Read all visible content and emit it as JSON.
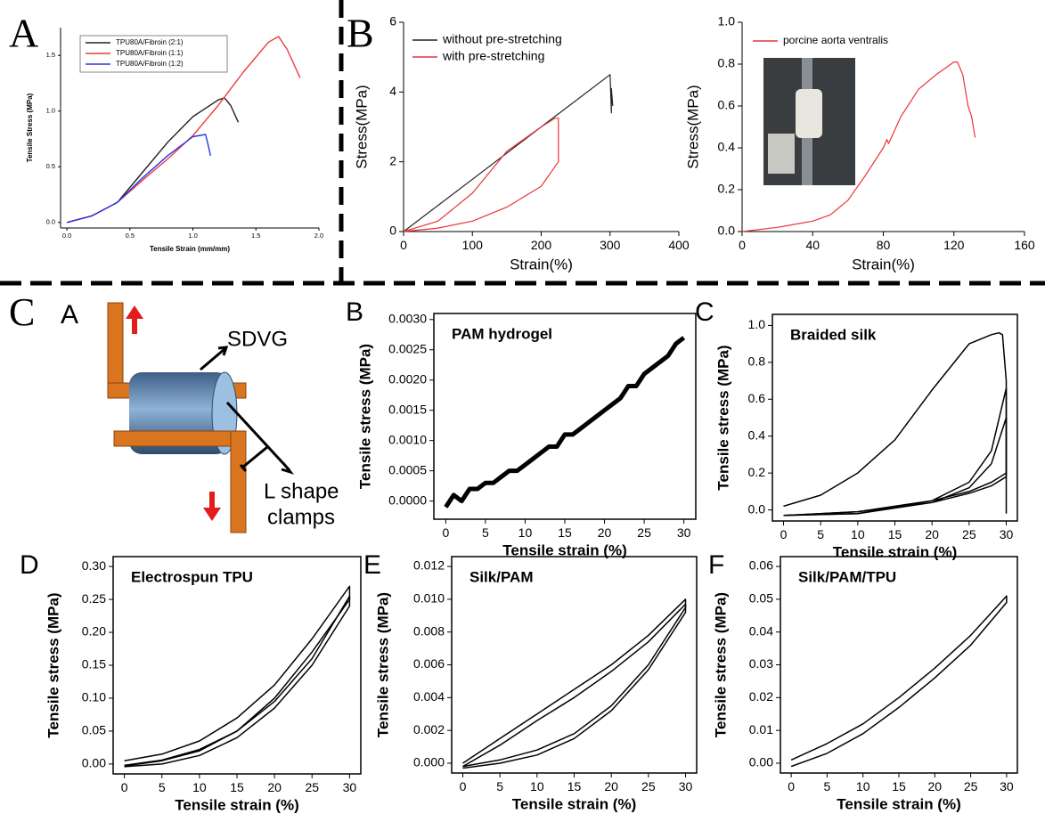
{
  "figure": {
    "panel_label": "C",
    "schematic": {
      "label": "A",
      "component": "SDVG",
      "clamps": [
        "L shape",
        "clamps"
      ]
    }
  },
  "chart_data": [
    {
      "type": "line",
      "panel_label": "A",
      "xlabel": "Tensile Strain (mm/mm)",
      "ylabel": "Tensile Stress (MPa)",
      "legend": "upper left",
      "xlim": [
        -0.05,
        2.0
      ],
      "ylim": [
        -0.05,
        1.75
      ],
      "xticks": [
        {
          "value": 0,
          "label": "0.0"
        },
        0.5,
        {
          "value": 1,
          "label": "1.0"
        },
        1.5,
        {
          "value": 2,
          "label": "2.0"
        }
      ],
      "yticks": [
        {
          "value": 0,
          "label": "0.0"
        },
        0.5,
        {
          "value": 1,
          "label": "1.0"
        },
        1.5
      ],
      "series": [
        {
          "name": "TPU80A/Fibroin (2:1)",
          "color": "#222222",
          "x": [
            0,
            0.2,
            0.4,
            0.6,
            0.8,
            1.0,
            1.2,
            1.25,
            1.3,
            1.36
          ],
          "values": [
            0,
            0.06,
            0.18,
            0.45,
            0.72,
            0.95,
            1.1,
            1.12,
            1.05,
            0.9
          ]
        },
        {
          "name": "TPU80A/Fibroin (1:1)",
          "color": "#ee3b3b",
          "x": [
            0,
            0.2,
            0.4,
            0.6,
            0.8,
            1.0,
            1.2,
            1.4,
            1.6,
            1.68,
            1.75,
            1.85
          ],
          "values": [
            0,
            0.06,
            0.18,
            0.38,
            0.57,
            0.78,
            1.05,
            1.35,
            1.62,
            1.67,
            1.55,
            1.3
          ]
        },
        {
          "name": "TPU80A/Fibroin (1:2)",
          "color": "#2b35e8",
          "x": [
            0,
            0.2,
            0.4,
            0.6,
            0.8,
            1.0,
            1.1,
            1.12,
            1.14
          ],
          "values": [
            0,
            0.06,
            0.18,
            0.4,
            0.6,
            0.77,
            0.79,
            0.7,
            0.6
          ]
        }
      ]
    },
    {
      "type": "line",
      "panel_label": "B",
      "xlabel": "Strain(%)",
      "ylabel": "Stress(MPa)",
      "legend": "upper left",
      "xlim": [
        0,
        400
      ],
      "ylim": [
        0,
        6
      ],
      "xticks": [
        0,
        100,
        200,
        300,
        400
      ],
      "yticks": [
        0,
        2,
        4,
        6
      ],
      "series": [
        {
          "name": "without pre-stretching",
          "color": "#222222",
          "x": [
            0,
            100,
            200,
            300,
            302,
            302,
            304
          ],
          "values": [
            0,
            1.5,
            3.0,
            4.5,
            3.4,
            4.1,
            3.6
          ]
        },
        {
          "name": "with pre-stretching",
          "color": "#e8343a",
          "x": [
            0,
            50,
            100,
            150,
            200,
            225,
            225,
            220,
            200,
            150,
            100,
            50,
            0
          ],
          "values": [
            0,
            0.1,
            0.3,
            0.7,
            1.3,
            2.0,
            3.25,
            3.25,
            3.0,
            2.3,
            1.1,
            0.3,
            0
          ]
        }
      ]
    },
    {
      "type": "line",
      "xlabel": "Strain(%)",
      "ylabel": "Stress(MPa)",
      "legend": "upper left",
      "xlim": [
        0,
        160
      ],
      "ylim": [
        0,
        1.0
      ],
      "xticks": [
        0,
        40,
        80,
        120,
        160
      ],
      "yticks": [
        {
          "value": 0,
          "label": "0.0"
        },
        0.2,
        0.4,
        0.6,
        0.8,
        {
          "value": 1,
          "label": "1.0"
        }
      ],
      "series": [
        {
          "name": "porcine aorta ventralis",
          "color": "#e8343a",
          "x": [
            0,
            20,
            40,
            50,
            60,
            70,
            80,
            82,
            83,
            90,
            100,
            110,
            120,
            122,
            125,
            128,
            130,
            132
          ],
          "values": [
            0,
            0.02,
            0.05,
            0.08,
            0.15,
            0.27,
            0.4,
            0.44,
            0.42,
            0.55,
            0.68,
            0.75,
            0.81,
            0.81,
            0.75,
            0.6,
            0.55,
            0.45
          ]
        }
      ]
    },
    {
      "type": "line",
      "panel_label": "B",
      "annotation": "PAM hydrogel",
      "xlabel": "Tensile strain (%)",
      "ylabel": "Tensile stress (MPa)",
      "xlim": [
        -1.5,
        31.5
      ],
      "ylim": [
        -0.0003,
        0.0031
      ],
      "xticks": [
        0,
        5,
        10,
        15,
        20,
        25,
        30
      ],
      "yticks": [
        {
          "value": 0,
          "label": "0.0000"
        },
        0.0005,
        {
          "value": 0.001,
          "label": "0.0010"
        },
        0.0015,
        {
          "value": 0.002,
          "label": "0.0020"
        },
        0.0025,
        {
          "value": 0.003,
          "label": "0.0030"
        }
      ],
      "series": [
        {
          "color": "#000000",
          "x": [
            0,
            1,
            2,
            3,
            4,
            5,
            6,
            7,
            8,
            9,
            10,
            11,
            12,
            13,
            14,
            15,
            16,
            17,
            18,
            19,
            20,
            21,
            22,
            23,
            24,
            25,
            26,
            27,
            28,
            29,
            30
          ],
          "values": [
            -0.0001,
            0.0001,
            0.0,
            0.0002,
            0.0002,
            0.0003,
            0.0003,
            0.0004,
            0.0005,
            0.0005,
            0.0006,
            0.0007,
            0.0008,
            0.0009,
            0.0009,
            0.0011,
            0.0011,
            0.0012,
            0.0013,
            0.0014,
            0.0015,
            0.0016,
            0.0017,
            0.0019,
            0.0019,
            0.0021,
            0.0022,
            0.0023,
            0.0024,
            0.0026,
            0.0027
          ]
        }
      ]
    },
    {
      "type": "line",
      "panel_label": "C",
      "annotation": "Braided silk",
      "xlabel": "Tensile strain (%)",
      "ylabel": "Tensile stress (MPa)",
      "xlim": [
        -1.5,
        31.5
      ],
      "ylim": [
        -0.06,
        1.06
      ],
      "xticks": [
        0,
        5,
        10,
        15,
        20,
        25,
        30
      ],
      "yticks": [
        {
          "value": 0,
          "label": "0.0"
        },
        0.2,
        0.4,
        0.6,
        0.8,
        {
          "value": 1,
          "label": "1.0"
        }
      ],
      "series": [
        {
          "color": "#000000",
          "x": [
            0,
            5,
            10,
            15,
            20,
            25,
            28,
            29,
            29.5,
            30,
            30
          ],
          "values": [
            0.02,
            0.08,
            0.2,
            0.38,
            0.65,
            0.9,
            0.95,
            0.96,
            0.95,
            0.7,
            -0.02
          ]
        },
        {
          "color": "#000000",
          "x": [
            0,
            10,
            20,
            25,
            28,
            30,
            30,
            28,
            25,
            20,
            10,
            0
          ],
          "values": [
            -0.03,
            -0.01,
            0.05,
            0.15,
            0.32,
            0.66,
            0.2,
            0.15,
            0.1,
            0.05,
            -0.02,
            -0.03
          ]
        },
        {
          "color": "#000000",
          "x": [
            0,
            10,
            20,
            25,
            28,
            30,
            30,
            28,
            25,
            20,
            10,
            0
          ],
          "values": [
            -0.03,
            -0.01,
            0.04,
            0.12,
            0.25,
            0.5,
            0.18,
            0.13,
            0.09,
            0.04,
            -0.02,
            -0.03
          ]
        }
      ]
    },
    {
      "type": "line",
      "panel_label": "D",
      "annotation": "Electrospun TPU",
      "xlabel": "Tensile strain (%)",
      "ylabel": "Tensile stress (MPa)",
      "xlim": [
        -1.5,
        31.5
      ],
      "ylim": [
        -0.015,
        0.315
      ],
      "xticks": [
        0,
        5,
        10,
        15,
        20,
        25,
        30
      ],
      "yticks": [
        {
          "value": 0,
          "label": "0.00"
        },
        0.05,
        {
          "value": 0.1,
          "label": "0.10"
        },
        0.15,
        {
          "value": 0.2,
          "label": "0.20"
        },
        0.25,
        {
          "value": 0.3,
          "label": "0.30"
        }
      ],
      "series": [
        {
          "color": "#000000",
          "x": [
            0,
            5,
            10,
            15,
            20,
            25,
            30,
            30,
            25,
            20,
            15,
            10,
            5,
            0
          ],
          "values": [
            0.005,
            0.015,
            0.035,
            0.07,
            0.12,
            0.19,
            0.27,
            0.25,
            0.17,
            0.1,
            0.05,
            0.02,
            0.005,
            -0.003
          ]
        },
        {
          "color": "#000000",
          "x": [
            0,
            5,
            10,
            15,
            20,
            25,
            30,
            30,
            25,
            20,
            15,
            10,
            5,
            0
          ],
          "values": [
            -0.002,
            0.006,
            0.022,
            0.05,
            0.095,
            0.16,
            0.255,
            0.24,
            0.15,
            0.085,
            0.04,
            0.013,
            0.0,
            -0.004
          ]
        }
      ]
    },
    {
      "type": "line",
      "panel_label": "E",
      "annotation": "Silk/PAM",
      "xlabel": "Tensile strain (%)",
      "ylabel": "Tensile stress (MPa)",
      "xlim": [
        -1.5,
        31.5
      ],
      "ylim": [
        -0.0006,
        0.0126
      ],
      "xticks": [
        0,
        5,
        10,
        15,
        20,
        25,
        30
      ],
      "yticks": [
        {
          "value": 0,
          "label": "0.000"
        },
        0.002,
        0.004,
        0.006,
        0.008,
        {
          "value": 0.01,
          "label": "0.010"
        },
        0.012
      ],
      "series": [
        {
          "color": "#000000",
          "x": [
            0,
            5,
            10,
            15,
            20,
            25,
            30,
            30,
            25,
            20,
            15,
            10,
            5,
            0
          ],
          "values": [
            0,
            0.0015,
            0.003,
            0.0045,
            0.006,
            0.0078,
            0.01,
            0.0095,
            0.006,
            0.0035,
            0.0018,
            0.0008,
            0.0002,
            -0.0002
          ]
        },
        {
          "color": "#000000",
          "x": [
            0,
            5,
            10,
            15,
            20,
            25,
            30,
            30,
            25,
            20,
            15,
            10,
            5,
            0
          ],
          "values": [
            -0.0002,
            0.0011,
            0.0026,
            0.004,
            0.0056,
            0.0074,
            0.0097,
            0.0092,
            0.0057,
            0.0032,
            0.0015,
            0.0005,
            0.0,
            -0.0003
          ]
        }
      ]
    },
    {
      "type": "line",
      "panel_label": "F",
      "annotation": "Silk/PAM/TPU",
      "xlabel": "Tensile strain (%)",
      "ylabel": "Tensile stress (MPa)",
      "xlim": [
        -1.5,
        31.5
      ],
      "ylim": [
        -0.003,
        0.063
      ],
      "xticks": [
        0,
        5,
        10,
        15,
        20,
        25,
        30
      ],
      "yticks": [
        {
          "value": 0,
          "label": "0.00"
        },
        0.01,
        0.02,
        0.03,
        0.04,
        0.05,
        0.06
      ],
      "series": [
        {
          "color": "#000000",
          "x": [
            0,
            5,
            10,
            15,
            20,
            25,
            30,
            30,
            25,
            20,
            15,
            10,
            5,
            0
          ],
          "values": [
            0.001,
            0.006,
            0.012,
            0.02,
            0.029,
            0.039,
            0.051,
            0.049,
            0.036,
            0.026,
            0.017,
            0.009,
            0.003,
            -0.001
          ]
        }
      ]
    }
  ]
}
